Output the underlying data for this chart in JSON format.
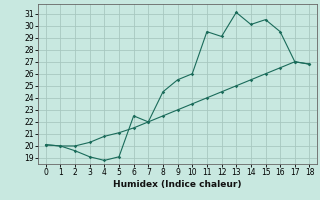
{
  "title": "",
  "xlabel": "Humidex (Indice chaleur)",
  "bg_color": "#c8e8e0",
  "line_color": "#1a6b5a",
  "grid_color": "#a8c8c0",
  "curve1_x": [
    0,
    1,
    2,
    3,
    4,
    5,
    6,
    7,
    8,
    9,
    10,
    11,
    12,
    13,
    14,
    15,
    16,
    17,
    18
  ],
  "curve1_y": [
    20.1,
    20.0,
    19.6,
    19.1,
    18.8,
    19.1,
    22.5,
    22.0,
    24.5,
    25.5,
    26.0,
    29.5,
    29.1,
    31.1,
    30.1,
    30.5,
    29.5,
    27.0,
    26.8
  ],
  "curve2_x": [
    0,
    1,
    2,
    3,
    4,
    5,
    6,
    7,
    8,
    9,
    10,
    11,
    12,
    13,
    14,
    15,
    16,
    17,
    18
  ],
  "curve2_y": [
    20.1,
    20.0,
    20.0,
    20.3,
    20.8,
    21.1,
    21.5,
    22.0,
    22.5,
    23.0,
    23.5,
    24.0,
    24.5,
    25.0,
    25.5,
    26.0,
    26.5,
    27.0,
    26.8
  ],
  "ylim": [
    18.5,
    31.8
  ],
  "xlim": [
    -0.5,
    18.5
  ],
  "yticks": [
    19,
    20,
    21,
    22,
    23,
    24,
    25,
    26,
    27,
    28,
    29,
    30,
    31
  ],
  "xticks": [
    0,
    1,
    2,
    3,
    4,
    5,
    6,
    7,
    8,
    9,
    10,
    11,
    12,
    13,
    14,
    15,
    16,
    17,
    18
  ]
}
